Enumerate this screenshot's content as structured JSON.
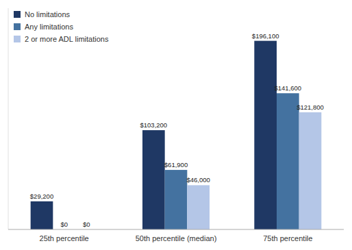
{
  "chart_data": {
    "type": "bar",
    "categories": [
      "25th percentile",
      "50th percentile (median)",
      "75th percentile"
    ],
    "series": [
      {
        "name": "No limitations",
        "color": "#1F3864",
        "values": [
          29200,
          103200,
          196100
        ],
        "value_labels": [
          "$29,200",
          "$103,200",
          "$196,100"
        ]
      },
      {
        "name": "Any limitations",
        "color": "#4472A0",
        "values": [
          0,
          61900,
          141600
        ],
        "value_labels": [
          "$0",
          "$61,900",
          "$141,600"
        ]
      },
      {
        "name": "2 or more ADL limitations",
        "color": "#B4C6E7",
        "values": [
          0,
          46000,
          121800
        ],
        "value_labels": [
          "$0",
          "$46,000",
          "$121,800"
        ]
      }
    ],
    "ylim": [
      0,
      230000
    ],
    "legend": "upper left",
    "data_labels": true,
    "tick_labels": "x",
    "grid": false
  }
}
